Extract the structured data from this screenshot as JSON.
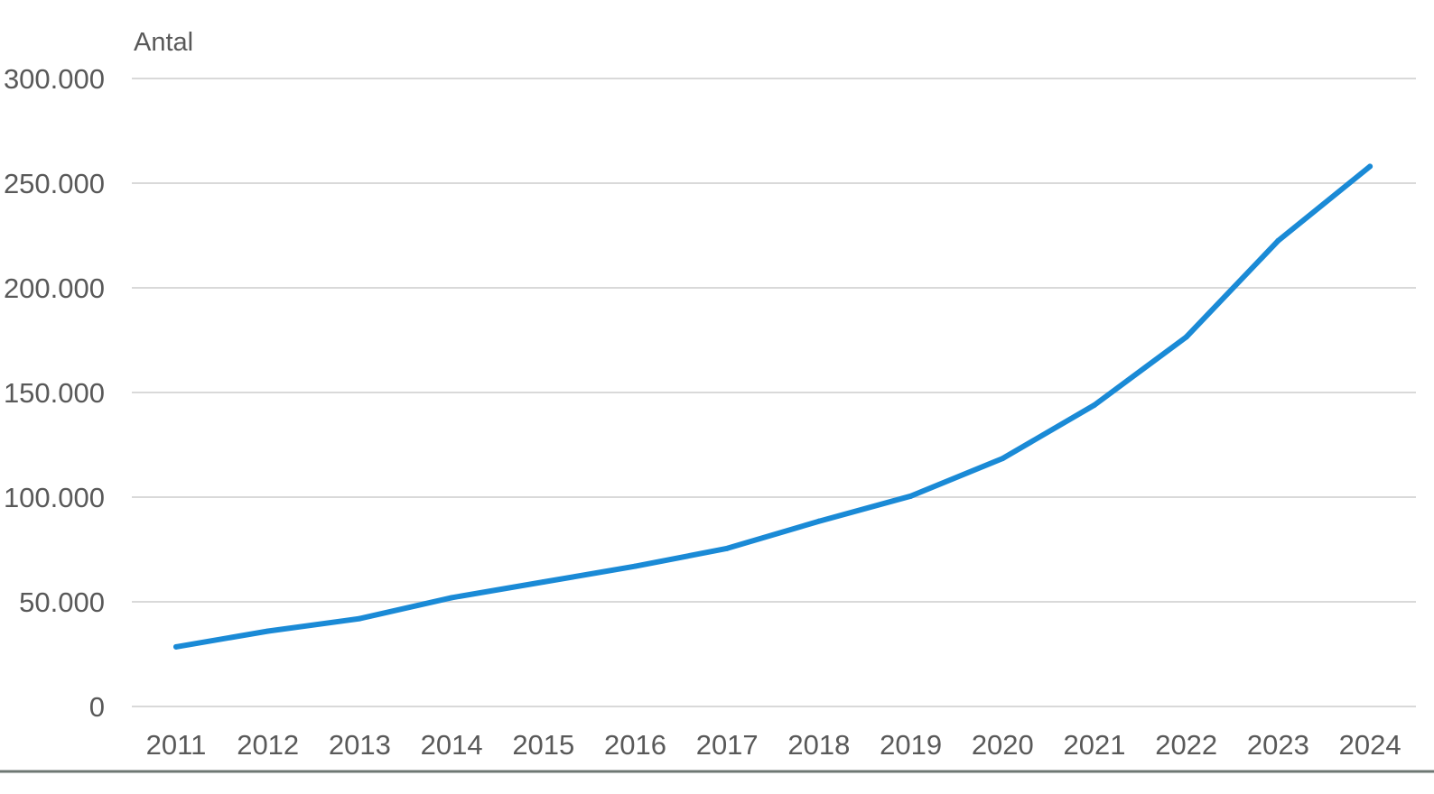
{
  "chart_data": {
    "type": "line",
    "ylabel": "Antal",
    "xlabel": "",
    "categories": [
      "2011",
      "2012",
      "2013",
      "2014",
      "2015",
      "2016",
      "2017",
      "2018",
      "2019",
      "2020",
      "2021",
      "2022",
      "2023",
      "2024"
    ],
    "series": [
      {
        "values": [
          28500,
          36000,
          42000,
          52000,
          59500,
          67000,
          75500,
          88500,
          100500,
          118500,
          144000,
          176500,
          222500,
          258000
        ]
      }
    ],
    "ylim": [
      0,
      300000
    ],
    "yticks": [
      0,
      50000,
      100000,
      150000,
      200000,
      250000,
      300000
    ],
    "ytick_labels": [
      "0",
      "50.000",
      "100.000",
      "150.000",
      "200.000",
      "250.000",
      "300.000"
    ],
    "grid": "horizontal",
    "legend": "none",
    "colors": {
      "line": "#1a8ad6",
      "grid": "#d9d9d9",
      "text": "#595959",
      "bottom_border": "#6e7773"
    }
  }
}
